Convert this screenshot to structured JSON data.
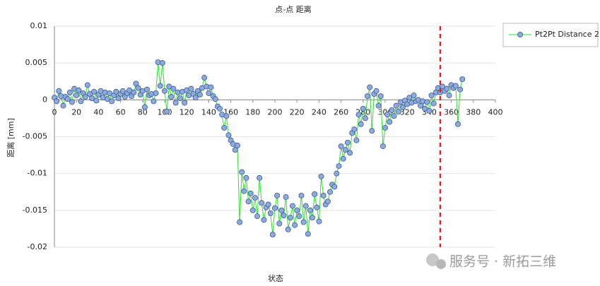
{
  "chart_data": {
    "type": "line",
    "title": "点-点 距离",
    "xlabel": "状态",
    "ylabel": "距离 [mm]",
    "watermark": "服务号 · 新拓三维",
    "x": [
      0,
      2,
      4,
      6,
      8,
      10,
      12,
      14,
      16,
      18,
      20,
      22,
      24,
      26,
      28,
      30,
      32,
      34,
      36,
      38,
      40,
      42,
      44,
      46,
      48,
      50,
      52,
      54,
      56,
      58,
      60,
      62,
      64,
      66,
      68,
      70,
      72,
      74,
      76,
      78,
      80,
      82,
      84,
      86,
      88,
      90,
      92,
      94,
      96,
      98,
      100,
      102,
      104,
      106,
      108,
      110,
      112,
      114,
      116,
      118,
      120,
      122,
      124,
      126,
      128,
      130,
      132,
      134,
      136,
      138,
      140,
      142,
      144,
      146,
      148,
      150,
      152,
      154,
      156,
      158,
      160,
      162,
      164,
      166,
      168,
      170,
      172,
      174,
      176,
      178,
      180,
      182,
      184,
      186,
      188,
      190,
      192,
      194,
      196,
      198,
      200,
      202,
      204,
      206,
      208,
      210,
      212,
      214,
      216,
      218,
      220,
      222,
      224,
      226,
      228,
      230,
      232,
      234,
      236,
      238,
      240,
      242,
      244,
      246,
      248,
      250,
      252,
      254,
      256,
      258,
      260,
      262,
      264,
      266,
      268,
      270,
      272,
      274,
      276,
      278,
      280,
      282,
      284,
      286,
      288,
      290,
      292,
      294,
      296,
      298,
      300,
      302,
      304,
      306,
      308,
      310,
      312,
      314,
      316,
      318,
      320,
      322,
      324,
      326,
      328,
      330,
      332,
      334,
      336,
      338,
      340,
      342,
      344,
      346,
      348,
      350,
      352,
      354,
      356,
      358,
      360,
      362,
      364,
      366,
      368,
      370
    ],
    "series": [
      {
        "name": "Pt2Pt Distance 2",
        "color": "#33dd33",
        "marker_color": "#8eaadb",
        "values": [
          0.0003,
          -0.0002,
          0.0012,
          0.0005,
          -0.0008,
          0.0004,
          0.0001,
          0.001,
          -0.0003,
          0.0015,
          0.0006,
          0.0013,
          -0.0002,
          0.0009,
          0.0004,
          0.002,
          0.0008,
          0.0002,
          0.0011,
          -0.0001,
          0.0007,
          0.0012,
          0.0003,
          0.001,
          0.0001,
          0.0009,
          -0.0002,
          0.0006,
          0.0011,
          0.0002,
          0.0008,
          0.0012,
          0.0004,
          0.0009,
          0.0013,
          0.0005,
          0.001,
          0.0022,
          0.0016,
          0.0007,
          0.0012,
          -0.001,
          0.0014,
          0.0006,
          0.0008,
          -0.0002,
          0.0009,
          0.0051,
          0.0019,
          0.005,
          0.0012,
          -0.0016,
          0.0018,
          0.0004,
          0.0015,
          -0.0004,
          0.001,
          0.0002,
          0.0011,
          -0.0004,
          0.0013,
          0.0006,
          0.0015,
          0.0008,
          0.0003,
          0.0012,
          0.0007,
          0.0016,
          0.003,
          0.0018,
          0.0009,
          0.0017,
          0.0005,
          0.0001,
          -0.0009,
          -0.0012,
          -0.002,
          -0.0038,
          -0.0022,
          -0.0048,
          -0.0055,
          -0.006,
          -0.0068,
          -0.0062,
          -0.0166,
          -0.0098,
          -0.0124,
          -0.0106,
          -0.0138,
          -0.0127,
          -0.015,
          -0.0133,
          -0.0158,
          -0.0106,
          -0.014,
          -0.0163,
          -0.0146,
          -0.0142,
          -0.0154,
          -0.0183,
          -0.0147,
          -0.013,
          -0.0168,
          -0.015,
          -0.0157,
          -0.0132,
          -0.0176,
          -0.016,
          -0.0144,
          -0.017,
          -0.015,
          -0.0158,
          -0.013,
          -0.0166,
          -0.0144,
          -0.0182,
          -0.015,
          -0.016,
          -0.0128,
          -0.0146,
          -0.0165,
          -0.0104,
          -0.013,
          -0.0142,
          -0.0138,
          -0.0125,
          -0.0115,
          -0.0118,
          -0.01,
          -0.009,
          -0.0063,
          -0.008,
          -0.0068,
          -0.0058,
          -0.0072,
          -0.0045,
          -0.004,
          -0.0055,
          -0.002,
          -0.0033,
          -0.0012,
          -0.0025,
          0.0005,
          0.0017,
          -0.0042,
          0.0008,
          0.0012,
          -0.0008,
          0.0005,
          -0.0063,
          -0.0038,
          -0.002,
          -0.003,
          -0.0014,
          -0.0022,
          -0.0008,
          -0.0016,
          -0.0003,
          -0.001,
          -0.0001,
          -0.0006,
          0.0003,
          -0.0004,
          0.0006,
          -0.0002,
          0.0,
          -0.0008,
          -0.0002,
          -0.0012,
          -0.0003,
          -0.0015,
          0.0006,
          -0.0005,
          0.001,
          0.0016,
          0.001,
          0.0018,
          0.0012,
          0.0015,
          0.0006,
          0.002,
          0.0016,
          0.0019,
          -0.0033,
          0.0014,
          0.0028
        ]
      }
    ],
    "xlim": [
      0,
      400
    ],
    "xticks": [
      0,
      20,
      40,
      60,
      80,
      100,
      120,
      140,
      160,
      180,
      200,
      220,
      240,
      260,
      280,
      300,
      320,
      340,
      360,
      380,
      400
    ],
    "ylim": [
      -0.02,
      0.01
    ],
    "yticks": [
      0.01,
      0.005,
      0,
      -0.005,
      -0.01,
      -0.015,
      -0.02
    ],
    "grid": true,
    "legend": "right",
    "reference_line": {
      "x": 350,
      "color": "#dd2222"
    }
  }
}
